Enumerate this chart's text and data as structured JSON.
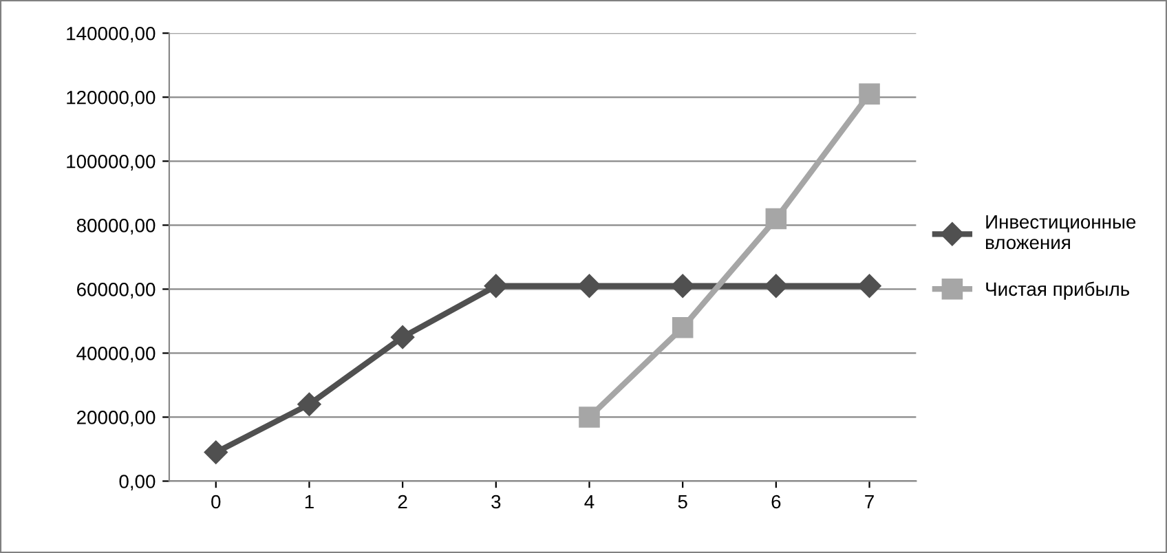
{
  "chart_data": {
    "type": "line",
    "categories": [
      "0",
      "1",
      "2",
      "3",
      "4",
      "5",
      "6",
      "7"
    ],
    "series": [
      {
        "name": "Инвестиционные\nвложения",
        "color": "#505050",
        "marker": "diamond",
        "values": [
          9000,
          24000,
          45000,
          61000,
          61000,
          61000,
          61000,
          61000
        ]
      },
      {
        "name": "Чистая прибыль",
        "color": "#a6a6a6",
        "marker": "square",
        "values": [
          null,
          null,
          null,
          null,
          20000,
          48000,
          82000,
          121000
        ]
      }
    ],
    "ylim": [
      0,
      140000
    ],
    "yticks": [
      {
        "value": 0,
        "label": "0,00"
      },
      {
        "value": 20000,
        "label": "20000,00"
      },
      {
        "value": 40000,
        "label": "40000,00"
      },
      {
        "value": 60000,
        "label": "60000,00"
      },
      {
        "value": 80000,
        "label": "80000,00"
      },
      {
        "value": 100000,
        "label": "100000,00"
      },
      {
        "value": 120000,
        "label": "120000,00"
      },
      {
        "value": 140000,
        "label": "140000,00"
      }
    ],
    "grid": "y",
    "legend": "right",
    "line_style": "solid"
  }
}
